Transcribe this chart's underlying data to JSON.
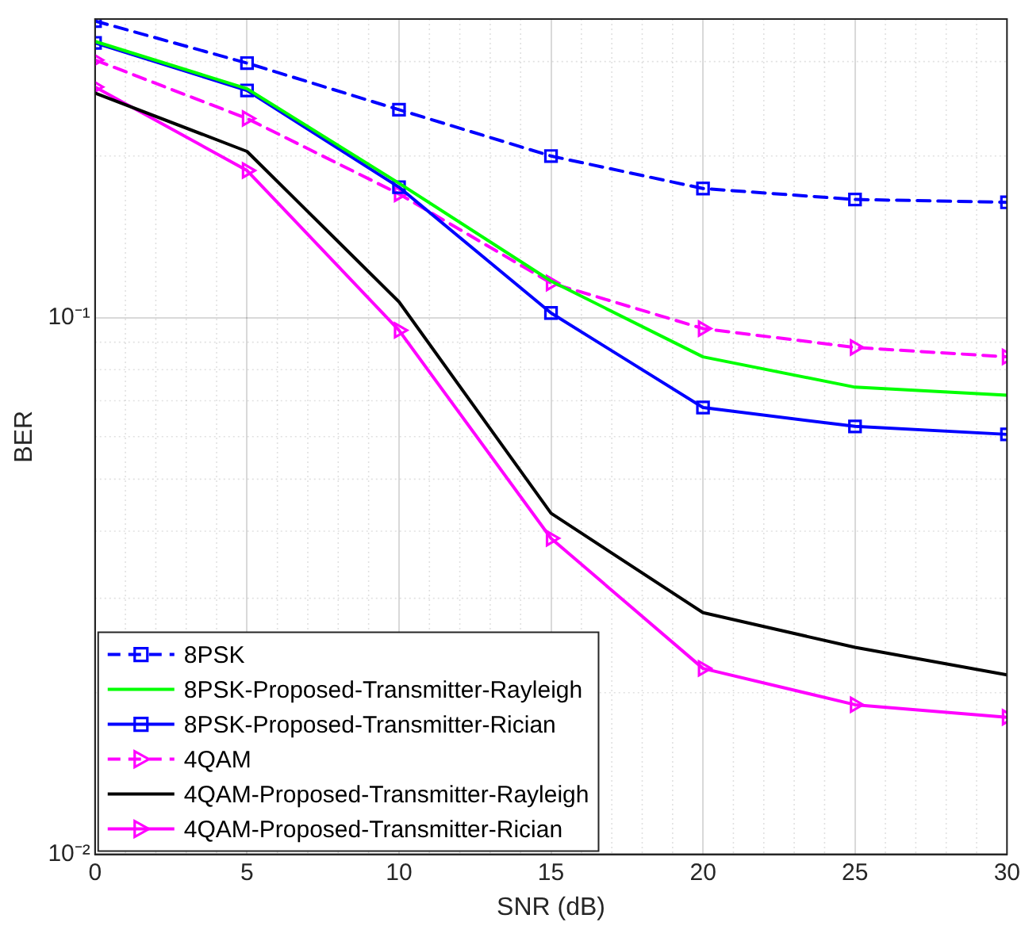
{
  "chart_data": {
    "type": "line",
    "xlabel": "SNR (dB)",
    "ylabel": "BER",
    "x": [
      0,
      5,
      10,
      15,
      20,
      25,
      30
    ],
    "log": "y",
    "grid": true,
    "legend": "bottom left",
    "xlim": [
      0,
      30
    ],
    "xticks": [
      0,
      5,
      10,
      15,
      20,
      25,
      30
    ],
    "ylim": [
      0.01,
      0.36
    ],
    "yticks": [
      {
        "value": 0.01,
        "label": "10⁻²"
      },
      {
        "value": 0.1,
        "label": "10⁻¹"
      }
    ],
    "series": [
      {
        "name": "8PSK",
        "color": "#0000ff",
        "marker": "square",
        "line_style": "dashed",
        "values": [
          0.357,
          0.298,
          0.244,
          0.2,
          0.174,
          0.166,
          0.164
        ]
      },
      {
        "name": "8PSK-Proposed-Transmitter-Rayleigh",
        "color": "#00ff00",
        "marker": "none",
        "line_style": "solid",
        "values": [
          0.327,
          0.267,
          0.178,
          0.117,
          0.0845,
          0.0742,
          0.0717
        ]
      },
      {
        "name": "8PSK-Proposed-Transmitter-Rician",
        "color": "#0000ff",
        "marker": "square",
        "line_style": "solid",
        "values": [
          0.325,
          0.265,
          0.175,
          0.102,
          0.068,
          0.0627,
          0.0606
        ]
      },
      {
        "name": "4QAM",
        "color": "#ff00ff",
        "marker": "triangle",
        "line_style": "dashed",
        "values": [
          0.302,
          0.235,
          0.17,
          0.116,
          0.0954,
          0.088,
          0.0845
        ]
      },
      {
        "name": "4QAM-Proposed-Transmitter-Rayleigh",
        "color": "#000000",
        "marker": "none",
        "line_style": "solid",
        "values": [
          0.262,
          0.204,
          0.107,
          0.0432,
          0.0282,
          0.0243,
          0.0216
        ]
      },
      {
        "name": "4QAM-Proposed-Transmitter-Rician",
        "color": "#ff00ff",
        "marker": "triangle",
        "line_style": "solid",
        "values": [
          0.269,
          0.188,
          0.0947,
          0.0388,
          0.0222,
          0.019,
          0.018
        ]
      }
    ]
  }
}
